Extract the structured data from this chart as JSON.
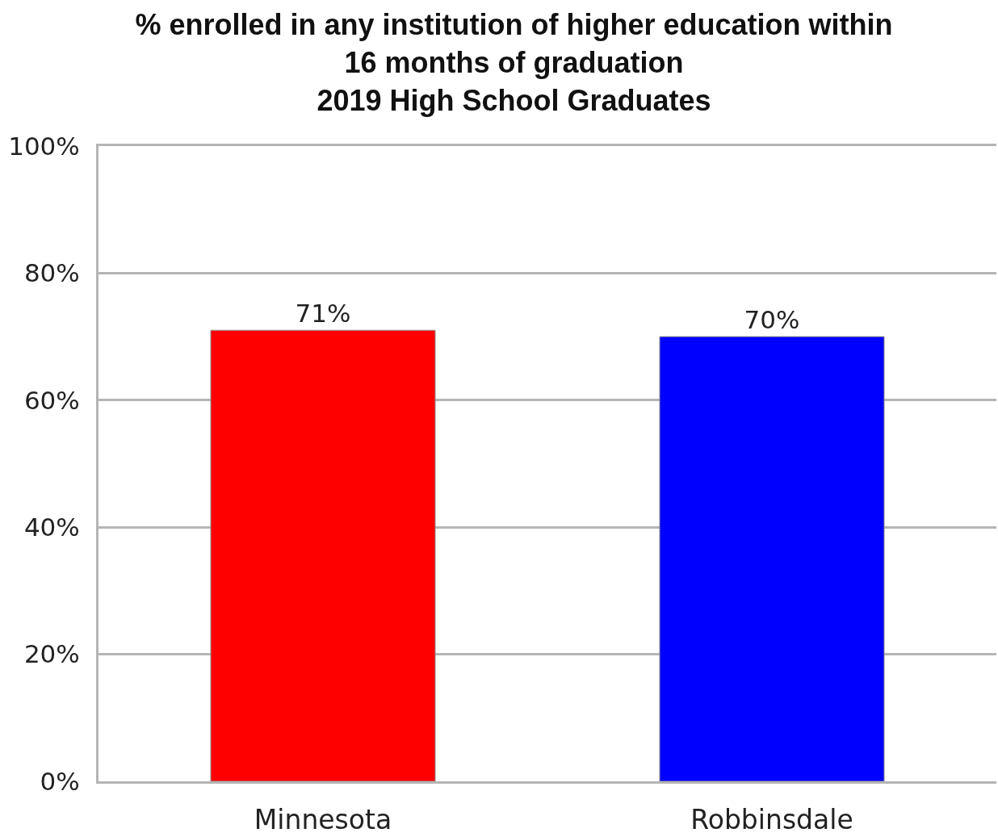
{
  "chart_data": {
    "type": "bar",
    "title": "% enrolled in any institution of higher education within\n16 months of graduation\n2019 High School Graduates",
    "categories": [
      "Minnesota",
      "Robbinsdale"
    ],
    "values": [
      71,
      70
    ],
    "colors": [
      "#ff0000",
      "#0000ff"
    ],
    "value_labels": [
      "71%",
      "70%"
    ],
    "ylim": [
      0,
      100
    ],
    "yticks": [
      {
        "value": 0,
        "label": "0%"
      },
      {
        "value": 20,
        "label": "20%"
      },
      {
        "value": 40,
        "label": "40%"
      },
      {
        "value": 60,
        "label": "60%"
      },
      {
        "value": 80,
        "label": "80%"
      },
      {
        "value": 100,
        "label": "100%"
      }
    ],
    "grid": "y"
  }
}
